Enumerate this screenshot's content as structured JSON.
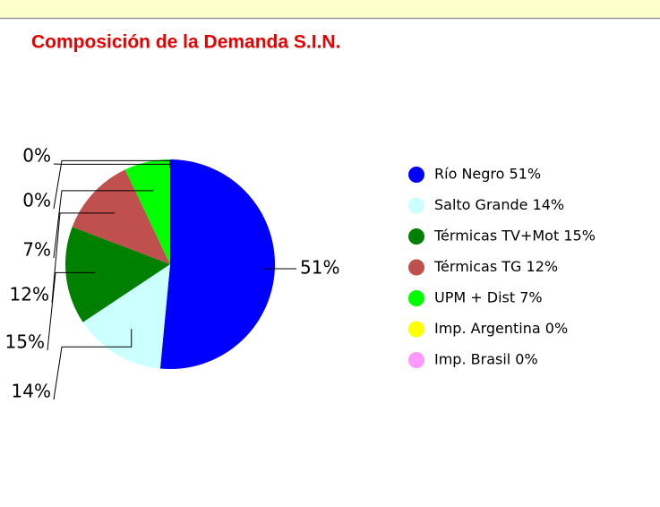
{
  "chart_data": {
    "type": "pie",
    "title": "Composición de la Demanda S.I.N.",
    "categories": [
      "Río Negro 51%",
      "Salto Grande 14%",
      "Térmicas TV+Mot 15%",
      "Térmicas TG 12%",
      "UPM + Dist 7%",
      "Imp. Argentina 0%",
      "Imp. Brasil 0%"
    ],
    "values": [
      51,
      14,
      15,
      12,
      7,
      0,
      0
    ],
    "value_labels": [
      "51%",
      "14%",
      "15%",
      "12%",
      "7%",
      "0%",
      "0%"
    ],
    "colors": [
      "#0000ff",
      "#ccffff",
      "#008000",
      "#c0504d",
      "#00ff00",
      "#ffff00",
      "#ff99ff"
    ]
  }
}
